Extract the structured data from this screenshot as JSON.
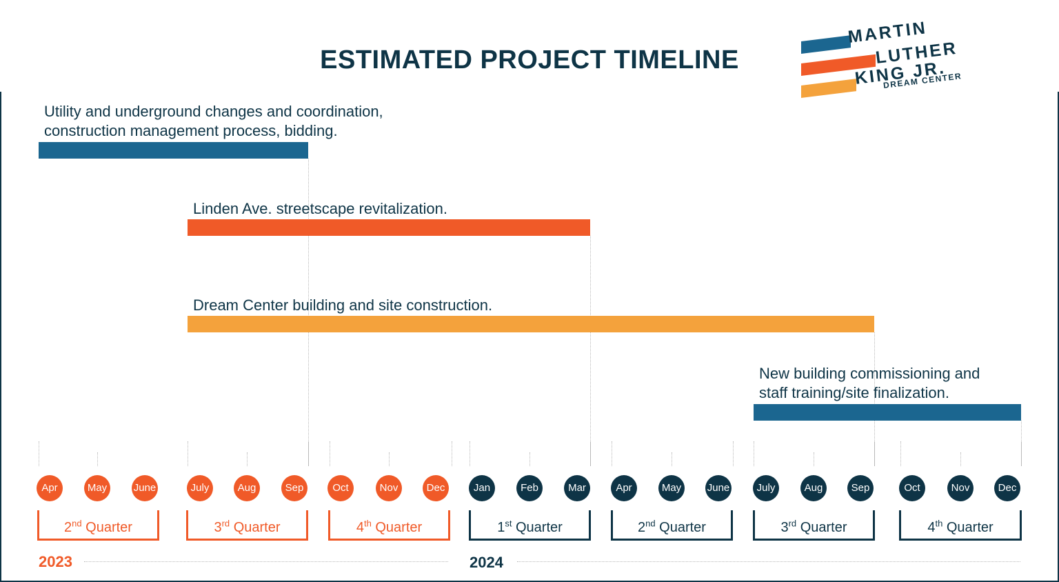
{
  "title": "ESTIMATED PROJECT TIMELINE",
  "logo": {
    "line1": "MARTIN",
    "line2": "LUTHER",
    "line3": "KING JR.",
    "line4": "DREAM CENTER",
    "stripe_colors": [
      "#1b6690",
      "#f05a28",
      "#f4a23c"
    ]
  },
  "colors": {
    "navy": "#0e3446",
    "blue": "#1b6690",
    "orange": "#f05a28",
    "amber": "#f4a23c",
    "year_2023": "#f05a28",
    "year_2024": "#0e3446"
  },
  "chart_data": {
    "type": "gantt",
    "tasks": [
      {
        "label_lines": [
          "Utility and underground changes and coordination,",
          "construction management process, bidding."
        ],
        "start": "2023-04",
        "end": "2023-09",
        "color": "#1b6690"
      },
      {
        "label_lines": [
          "Linden Ave. streetscape revitalization."
        ],
        "start": "2023-07",
        "end": "2024-03",
        "color": "#f05a28"
      },
      {
        "label_lines": [
          "Dream Center building and site construction."
        ],
        "start": "2023-07",
        "end": "2024-09",
        "color": "#f4a23c"
      },
      {
        "label_lines": [
          "New building commissioning and",
          "staff training/site finalization."
        ],
        "start": "2024-07",
        "end": "2024-12",
        "color": "#1b6690"
      }
    ],
    "months": [
      {
        "label": "Apr",
        "year": 2023
      },
      {
        "label": "May",
        "year": 2023
      },
      {
        "label": "June",
        "year": 2023
      },
      {
        "label": "July",
        "year": 2023
      },
      {
        "label": "Aug",
        "year": 2023
      },
      {
        "label": "Sep",
        "year": 2023
      },
      {
        "label": "Oct",
        "year": 2023
      },
      {
        "label": "Nov",
        "year": 2023
      },
      {
        "label": "Dec",
        "year": 2023
      },
      {
        "label": "Jan",
        "year": 2024
      },
      {
        "label": "Feb",
        "year": 2024
      },
      {
        "label": "Mar",
        "year": 2024
      },
      {
        "label": "Apr",
        "year": 2024
      },
      {
        "label": "May",
        "year": 2024
      },
      {
        "label": "June",
        "year": 2024
      },
      {
        "label": "July",
        "year": 2024
      },
      {
        "label": "Aug",
        "year": 2024
      },
      {
        "label": "Sep",
        "year": 2024
      },
      {
        "label": "Oct",
        "year": 2024
      },
      {
        "label": "Nov",
        "year": 2024
      },
      {
        "label": "Dec",
        "year": 2024
      }
    ],
    "quarters": [
      {
        "num": "2",
        "suffix": "nd",
        "word": "Quarter",
        "year": 2023
      },
      {
        "num": "3",
        "suffix": "rd",
        "word": "Quarter",
        "year": 2023
      },
      {
        "num": "4",
        "suffix": "th",
        "word": "Quarter",
        "year": 2023
      },
      {
        "num": "1",
        "suffix": "st",
        "word": "Quarter",
        "year": 2024
      },
      {
        "num": "2",
        "suffix": "nd",
        "word": "Quarter",
        "year": 2024
      },
      {
        "num": "3",
        "suffix": "rd",
        "word": "Quarter",
        "year": 2024
      },
      {
        "num": "4",
        "suffix": "th",
        "word": "Quarter",
        "year": 2024
      }
    ],
    "years": [
      "2023",
      "2024"
    ]
  }
}
